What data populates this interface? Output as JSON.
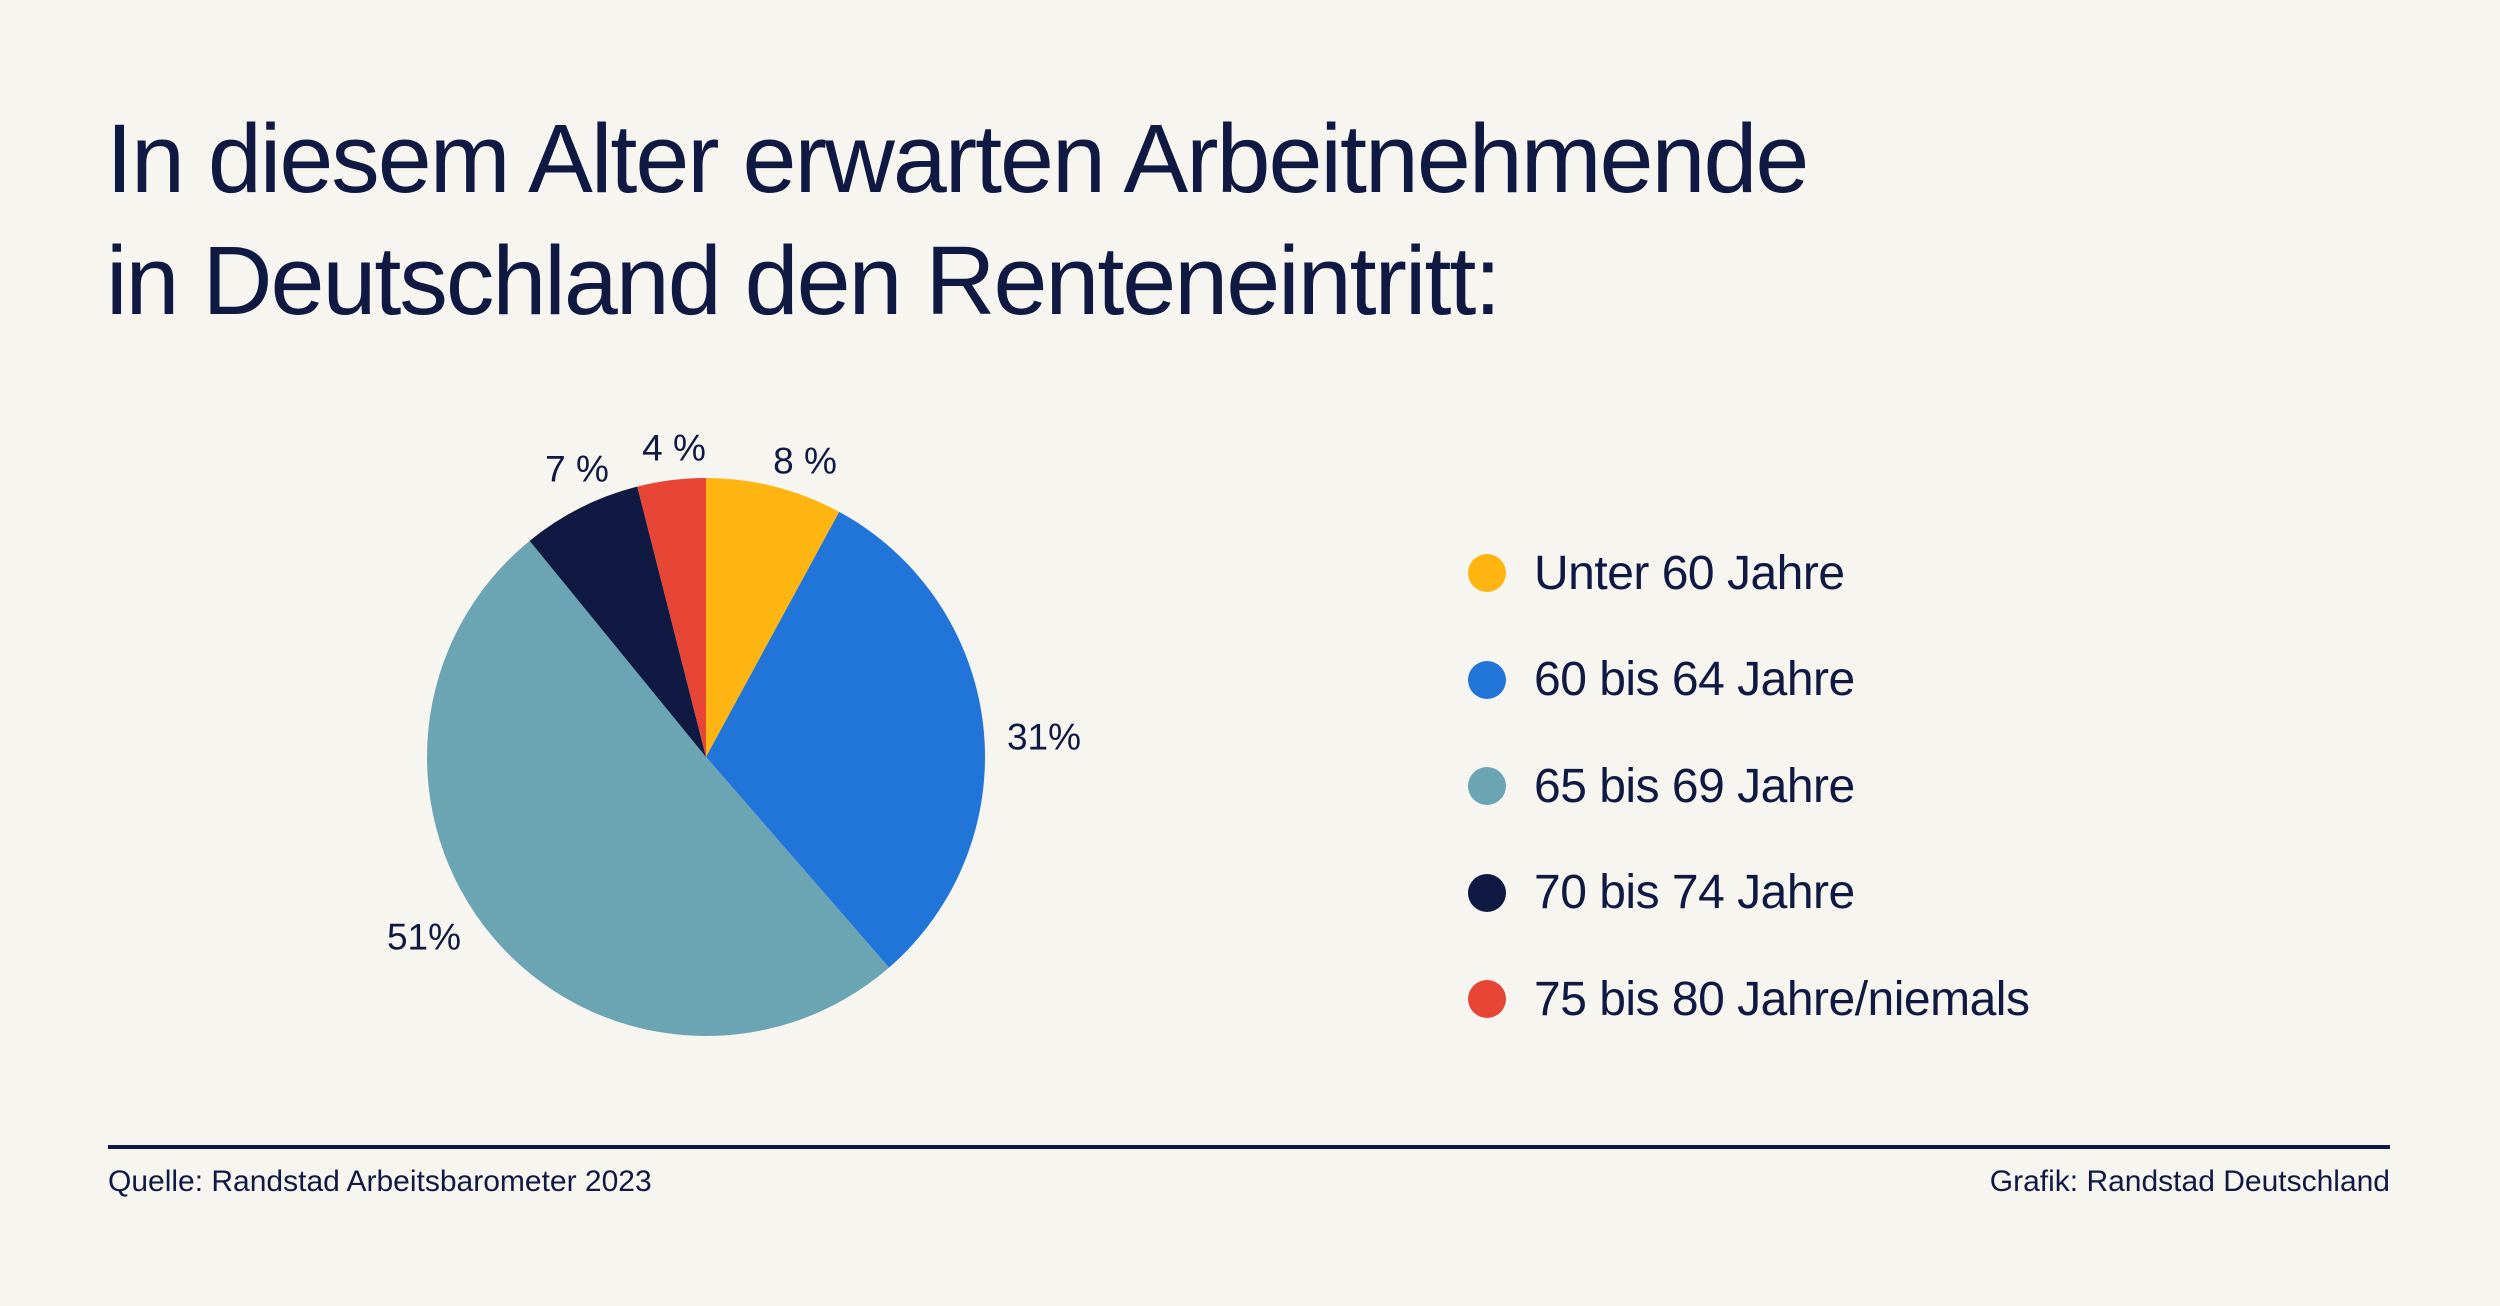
{
  "title_lines": [
    "In diesem Alter erwarten Arbeitnehmende",
    "in Deutschland den Renteneintritt:"
  ],
  "chart_data": {
    "type": "pie",
    "title": "In diesem Alter erwarten Arbeitnehmende in Deutschland den Renteneintritt:",
    "categories": [
      "Unter 60 Jahre",
      "60 bis 64 Jahre",
      "65 bis 69 Jahre",
      "70 bis 74 Jahre",
      "75 bis 80 Jahre/niemals"
    ],
    "values": [
      8,
      31,
      51,
      7,
      4
    ],
    "labels": [
      "8 %",
      "31%",
      "51%",
      "7 %",
      "4 %"
    ],
    "colors": [
      "#ffb511",
      "#2175d9",
      "#6ba5b4",
      "#0f1941",
      "#e74536"
    ],
    "start": "12 o'clock, clockwise",
    "legend_position": "right"
  },
  "footer": {
    "source": "Quelle: Randstad Arbeitsbarometer 2023",
    "credit": "Grafik: Randstad Deutschland"
  }
}
